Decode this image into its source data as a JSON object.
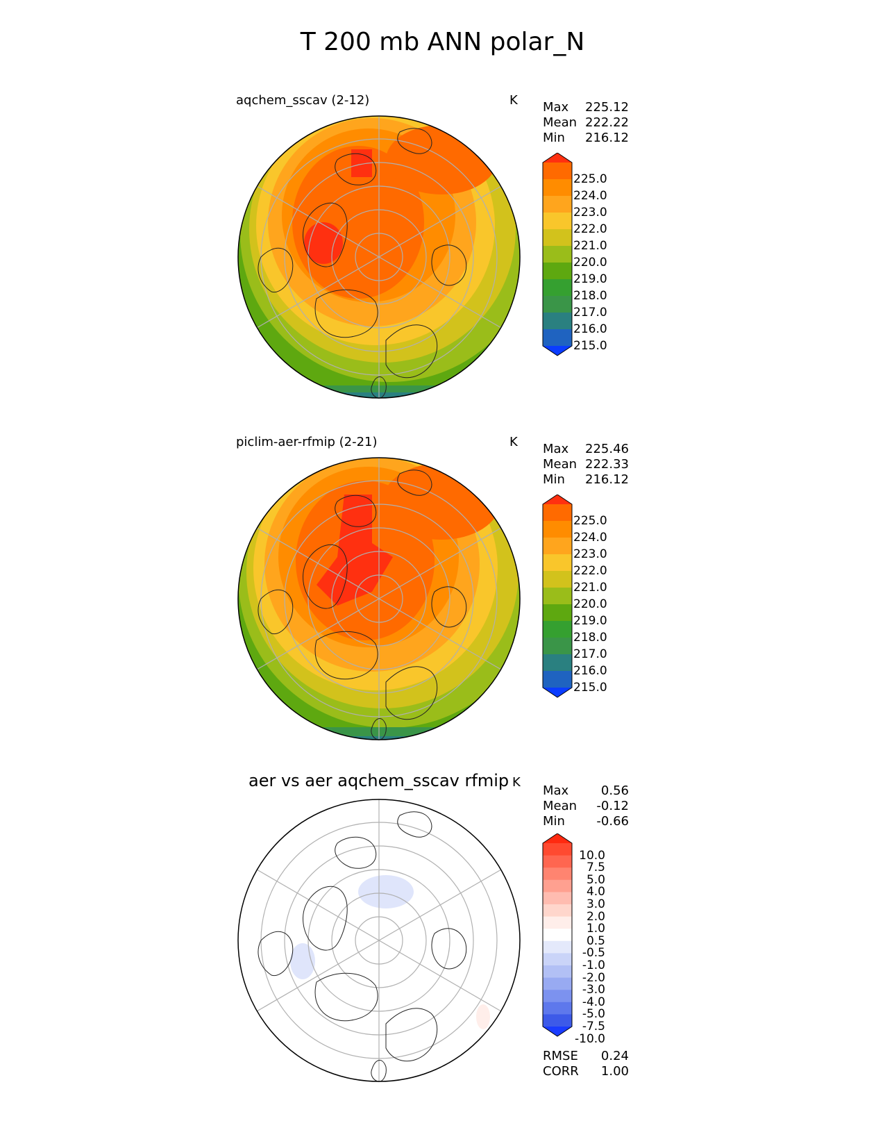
{
  "title": "T 200 mb ANN polar_N",
  "panels": [
    {
      "title": "aqchem_sscav (2-12)",
      "units": "K",
      "stats": [
        {
          "label": "Max",
          "value": "225.12"
        },
        {
          "label": "Mean",
          "value": "222.22"
        },
        {
          "label": "Min",
          "value": "216.12"
        }
      ],
      "colorbar": {
        "ticks": [
          "225.0",
          "224.0",
          "223.0",
          "222.0",
          "221.0",
          "220.0",
          "219.0",
          "218.0",
          "217.0",
          "216.0",
          "215.0"
        ],
        "colors": [
          "#ff3010",
          "#ff6a00",
          "#ff8c00",
          "#ffa51d",
          "#f9c62b",
          "#d2c21c",
          "#9abd1a",
          "#5ea810",
          "#35a030",
          "#3a9548",
          "#2a8080",
          "#1f63c0",
          "#0a3cff"
        ]
      }
    },
    {
      "title": "piclim-aer-rfmip (2-21)",
      "units": "K",
      "stats": [
        {
          "label": "Max",
          "value": "225.46"
        },
        {
          "label": "Mean",
          "value": "222.33"
        },
        {
          "label": "Min",
          "value": "216.12"
        }
      ],
      "colorbar": {
        "ticks": [
          "225.0",
          "224.0",
          "223.0",
          "222.0",
          "221.0",
          "220.0",
          "219.0",
          "218.0",
          "217.0",
          "216.0",
          "215.0"
        ],
        "colors": [
          "#ff3010",
          "#ff6a00",
          "#ff8c00",
          "#ffa51d",
          "#f9c62b",
          "#d2c21c",
          "#9abd1a",
          "#5ea810",
          "#35a030",
          "#3a9548",
          "#2a8080",
          "#1f63c0",
          "#0a3cff"
        ]
      }
    },
    {
      "title": "aer vs aer aqchem_sscav rfmip",
      "units": "K",
      "stats": [
        {
          "label": "Max",
          "value": "0.56"
        },
        {
          "label": "Mean",
          "value": "-0.12"
        },
        {
          "label": "Min",
          "value": "-0.66"
        }
      ],
      "extra_stats": [
        {
          "label": "RMSE",
          "value": "0.24"
        },
        {
          "label": "CORR",
          "value": "1.00"
        }
      ],
      "colorbar": {
        "ticks": [
          "10.0",
          "7.5",
          "5.0",
          "4.0",
          "3.0",
          "2.0",
          "1.0",
          "0.5",
          "-0.5",
          "-1.0",
          "-2.0",
          "-3.0",
          "-4.0",
          "-5.0",
          "-7.5",
          "-10.0"
        ],
        "colors": [
          "#ff2a10",
          "#ff4a30",
          "#ff6650",
          "#ff8470",
          "#ffa090",
          "#ffbcb0",
          "#ffd6cc",
          "#ffeeea",
          "#ffffff",
          "#e4e9fb",
          "#cad4f8",
          "#b2c0f5",
          "#98aaf2",
          "#7c92ef",
          "#5e78ec",
          "#3d5ae8",
          "#1a3cff"
        ]
      }
    }
  ],
  "chart_data": [
    {
      "type": "heatmap",
      "projection": "north polar stereographic",
      "title": "aqchem_sscav (2-12)",
      "units": "K",
      "value_range": [
        216.12,
        225.12
      ],
      "mean": 222.22,
      "levels": [
        215.0,
        216.0,
        217.0,
        218.0,
        219.0,
        220.0,
        221.0,
        222.0,
        223.0,
        224.0,
        225.0
      ]
    },
    {
      "type": "heatmap",
      "projection": "north polar stereographic",
      "title": "piclim-aer-rfmip (2-21)",
      "units": "K",
      "value_range": [
        216.12,
        225.46
      ],
      "mean": 222.33,
      "levels": [
        215.0,
        216.0,
        217.0,
        218.0,
        219.0,
        220.0,
        221.0,
        222.0,
        223.0,
        224.0,
        225.0
      ]
    },
    {
      "type": "heatmap",
      "projection": "north polar stereographic",
      "title": "aer vs aer aqchem_sscav rfmip",
      "units": "K",
      "value_range": [
        -0.66,
        0.56
      ],
      "mean": -0.12,
      "rmse": 0.24,
      "corr": 1.0,
      "levels": [
        -10.0,
        -7.5,
        -5.0,
        -4.0,
        -3.0,
        -2.0,
        -1.0,
        -0.5,
        0.5,
        1.0,
        2.0,
        3.0,
        4.0,
        5.0,
        7.5,
        10.0
      ]
    }
  ]
}
